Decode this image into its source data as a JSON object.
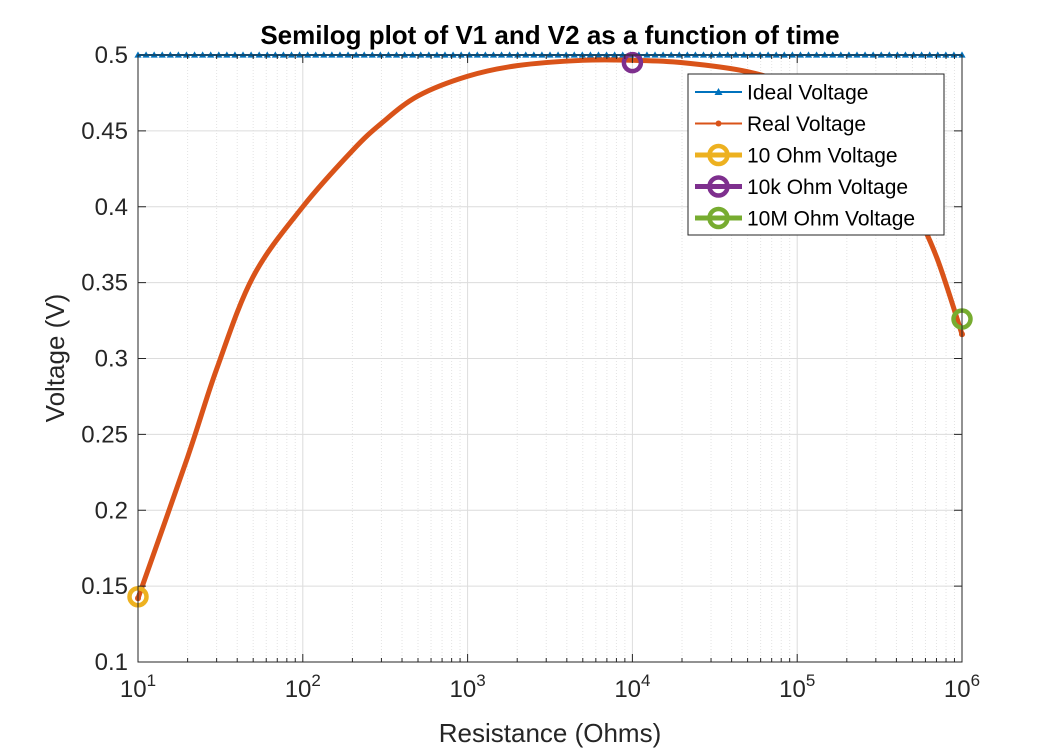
{
  "chart_data": {
    "type": "line",
    "title": "Semilog plot of V1 and V2 as a function of time",
    "xlabel": "Resistance (Ohms)",
    "ylabel": "Voltage (V)",
    "xscale": "log",
    "xlim": [
      10,
      1000000
    ],
    "ylim": [
      0.1,
      0.5
    ],
    "x_ticks": [
      10,
      100,
      1000,
      10000,
      100000,
      1000000
    ],
    "x_tick_labels": [
      {
        "base": "10",
        "exp": "1"
      },
      {
        "base": "10",
        "exp": "2"
      },
      {
        "base": "10",
        "exp": "3"
      },
      {
        "base": "10",
        "exp": "4"
      },
      {
        "base": "10",
        "exp": "5"
      },
      {
        "base": "10",
        "exp": "6"
      }
    ],
    "y_ticks": [
      0.1,
      0.15,
      0.2,
      0.25,
      0.3,
      0.35,
      0.4,
      0.45,
      0.5
    ],
    "y_tick_labels": [
      "0.1",
      "0.15",
      "0.2",
      "0.25",
      "0.3",
      "0.35",
      "0.4",
      "0.45",
      "0.5"
    ],
    "grid": true,
    "minor_grid": true,
    "legend_position": "top-right",
    "series": [
      {
        "name": "Ideal Voltage",
        "color": "#0072BD",
        "marker": "triangle",
        "x": [
          10,
          1000000
        ],
        "y": [
          0.5,
          0.5
        ]
      },
      {
        "name": "Real Voltage",
        "color": "#D95319",
        "marker": "dot",
        "x": [
          10,
          20,
          30,
          50,
          100,
          200,
          300,
          500,
          1000,
          2000,
          5000,
          10000,
          20000,
          50000,
          100000,
          200000,
          300000,
          500000,
          700000,
          1000000
        ],
        "y": [
          0.142,
          0.235,
          0.293,
          0.354,
          0.4,
          0.437,
          0.455,
          0.473,
          0.486,
          0.493,
          0.4965,
          0.4965,
          0.495,
          0.489,
          0.478,
          0.456,
          0.436,
          0.4,
          0.367,
          0.316
        ]
      },
      {
        "name": "10 Ohm Voltage",
        "color": "#EDB120",
        "marker": "circle",
        "x": [
          10
        ],
        "y": [
          0.143
        ]
      },
      {
        "name": "10k Ohm Voltage",
        "color": "#7E2F8E",
        "marker": "circle",
        "x": [
          10000
        ],
        "y": [
          0.495
        ]
      },
      {
        "name": "10M Ohm Voltage",
        "color": "#77AC30",
        "marker": "circle",
        "x": [
          1000000
        ],
        "y": [
          0.326
        ]
      }
    ]
  }
}
